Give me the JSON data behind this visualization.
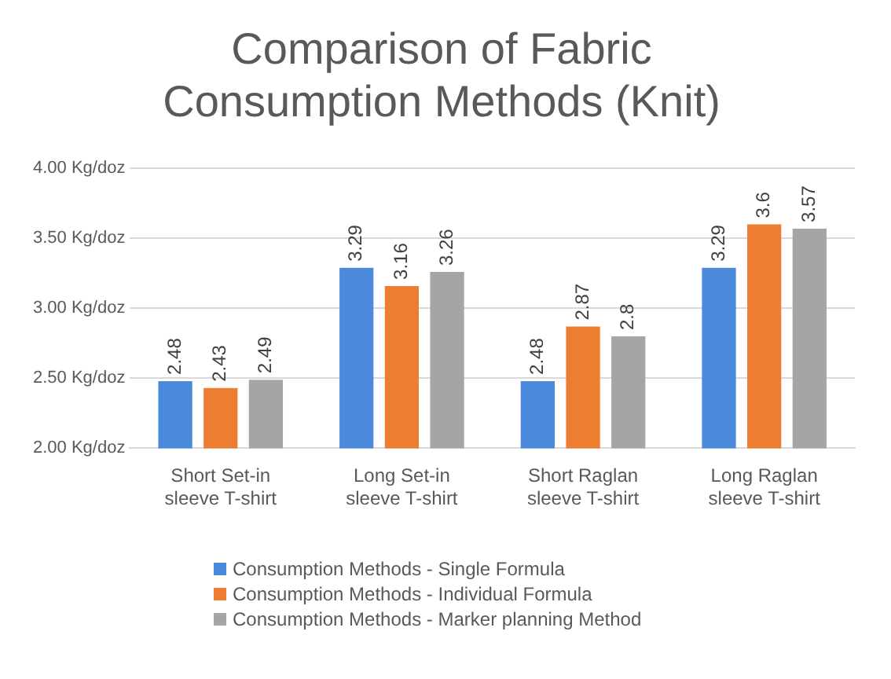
{
  "chart_data": {
    "type": "bar",
    "title": "Comparison of Fabric Consumption Methods (Knit)",
    "categories": [
      "Short Set-in sleeve T-shirt",
      "Long Set-in sleeve T-shirt",
      "Short Raglan sleeve T-shirt",
      "Long Raglan sleeve T-shirt"
    ],
    "series": [
      {
        "name": "Consumption Methods - Single Formula",
        "color": "#4a89dc",
        "values": [
          2.48,
          3.29,
          2.48,
          3.29
        ]
      },
      {
        "name": "Consumption Methods - Individual Formula",
        "color": "#ed7d31",
        "values": [
          2.43,
          3.16,
          2.87,
          3.6
        ]
      },
      {
        "name": "Consumption Methods - Marker planning Method",
        "color": "#a5a5a5",
        "values": [
          2.49,
          3.26,
          2.8,
          3.57
        ]
      }
    ],
    "ylim": [
      2,
      4
    ],
    "yticks": [
      {
        "value": 2,
        "label": "2.00 Kg/doz"
      },
      {
        "value": 2.5,
        "label": "2.50 Kg/doz"
      },
      {
        "value": 3,
        "label": "3.00 Kg/doz"
      },
      {
        "value": 3.5,
        "label": "3.50 Kg/doz"
      },
      {
        "value": 4,
        "label": "4.00 Kg/doz"
      }
    ],
    "grid": "y",
    "legend": "bottom",
    "data_labels": true
  }
}
